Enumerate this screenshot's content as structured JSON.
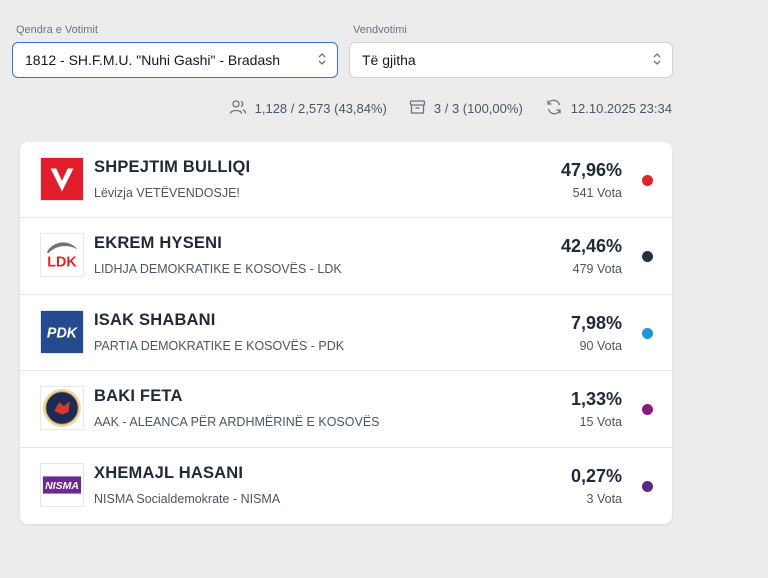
{
  "filters": {
    "center": {
      "label": "Qendra e Votimit",
      "value": "1812 - SH.F.M.U. \"Nuhi Gashi\" - Bradash"
    },
    "station": {
      "label": "Vendvotimi",
      "value": "Të gjitha"
    }
  },
  "stats": {
    "turnout": "1,128 / 2,573 (43,84%)",
    "boxes": "3 / 3 (100,00%)",
    "updated": "12.10.2025 23:34"
  },
  "candidates": [
    {
      "name": "SHPEJTIM BULLIQI",
      "party": "Lëvizja VETËVENDOSJE!",
      "percent": "47,96%",
      "votes": "541 Vota",
      "color": "#dc2626",
      "logo": "vetevendosje-logo"
    },
    {
      "name": "EKREM HYSENI",
      "party": "LIDHJA DEMOKRATIKE E KOSOVËS - LDK",
      "percent": "42,46%",
      "votes": "479 Vota",
      "color": "#253046",
      "logo": "ldk-logo"
    },
    {
      "name": "ISAK SHABANI",
      "party": "PARTIA DEMOKRATIKE E KOSOVËS - PDK",
      "percent": "7,98%",
      "votes": "90 Vota",
      "color": "#1c97d4",
      "logo": "pdk-logo"
    },
    {
      "name": "BAKI FETA",
      "party": "AAK - ALEANCA PËR ARDHMËRINË E KOSOVËS",
      "percent": "1,33%",
      "votes": "15 Vota",
      "color": "#8b1a7f",
      "logo": "aak-logo"
    },
    {
      "name": "XHEMAJL HASANI",
      "party": "NISMA Socialdemokrate - NISMA",
      "percent": "0,27%",
      "votes": "3 Vota",
      "color": "#5b2a86",
      "logo": "nisma-logo"
    }
  ],
  "icons": {
    "turnout": "users-icon",
    "boxes": "ballot-box-icon",
    "updated": "refresh-icon",
    "select": "chevron-updown-icon"
  }
}
